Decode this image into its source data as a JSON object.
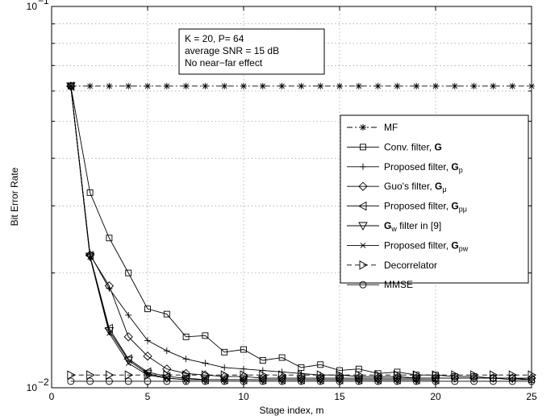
{
  "chart_data": {
    "type": "line",
    "xlabel": "Stage index, m",
    "ylabel": "Bit Error Rate",
    "xlim": [
      0,
      25
    ],
    "ylim": [
      0.01,
      0.1
    ],
    "yscale": "log",
    "xticks": [
      0,
      5,
      10,
      15,
      20,
      25
    ],
    "ytick_labels": [
      {
        "base": "10",
        "exp": "−2",
        "value": 0.01
      },
      {
        "base": "10",
        "exp": "−1",
        "value": 0.1
      }
    ],
    "grid": true,
    "legend_position": "right",
    "annotation": {
      "lines": [
        "K = 20, P= 64",
        "average SNR = 15 dB",
        "No near−far effect"
      ]
    },
    "series": [
      {
        "name": "MF",
        "name_sub": "",
        "style": "dashdot",
        "marker": "asterisk",
        "x": [
          1,
          2,
          3,
          4,
          5,
          6,
          7,
          8,
          9,
          10,
          11,
          12,
          13,
          14,
          15,
          16,
          17,
          18,
          19,
          20,
          21,
          22,
          23,
          24,
          25
        ],
        "y": [
          0.0618,
          0.0618,
          0.0618,
          0.0618,
          0.0618,
          0.0618,
          0.0618,
          0.0618,
          0.0618,
          0.0618,
          0.0618,
          0.0618,
          0.0618,
          0.0618,
          0.0618,
          0.0618,
          0.0618,
          0.0618,
          0.0618,
          0.0618,
          0.0618,
          0.0618,
          0.0618,
          0.0618,
          0.0618
        ]
      },
      {
        "name": "Conv. filter, ",
        "name_bold": "G",
        "name_sub": "",
        "style": "solid",
        "marker": "square",
        "x": [
          1,
          2,
          3,
          4,
          5,
          6,
          7,
          8,
          9,
          10,
          11,
          12,
          13,
          14,
          15,
          16,
          17,
          18,
          19,
          20,
          21,
          22,
          23,
          24,
          25
        ],
        "y": [
          0.0618,
          0.0325,
          0.0247,
          0.02,
          0.0161,
          0.0156,
          0.0136,
          0.0137,
          0.0124,
          0.0126,
          0.0118,
          0.012,
          0.0113,
          0.0115,
          0.0111,
          0.0112,
          0.0109,
          0.011,
          0.0108,
          0.0108,
          0.0107,
          0.0107,
          0.0106,
          0.0106,
          0.0105
        ]
      },
      {
        "name": "Proposed filter, ",
        "name_bold": "G",
        "name_sub": "p",
        "style": "solid",
        "marker": "plus",
        "x": [
          1,
          2,
          3,
          4,
          5,
          6,
          7,
          8,
          9,
          10,
          11,
          12,
          13,
          14,
          15,
          16,
          17,
          18,
          19,
          20,
          21,
          22,
          23,
          24,
          25
        ],
        "y": [
          0.0618,
          0.0224,
          0.0182,
          0.0155,
          0.0133,
          0.0125,
          0.0119,
          0.0116,
          0.0113,
          0.0112,
          0.0111,
          0.011,
          0.0109,
          0.0108,
          0.0108,
          0.0107,
          0.0107,
          0.0107,
          0.0106,
          0.0106,
          0.0106,
          0.0106,
          0.0106,
          0.0105,
          0.0105
        ]
      },
      {
        "name": "Guo's filter, ",
        "name_bold": "G",
        "name_sub": "μ",
        "style": "solid",
        "marker": "diamond",
        "x": [
          1,
          2,
          3,
          4,
          5,
          6,
          7,
          8,
          9,
          10,
          11,
          12,
          13,
          14,
          15,
          16,
          17,
          18,
          19,
          20,
          21,
          22,
          23,
          24,
          25
        ],
        "y": [
          0.0618,
          0.0223,
          0.0185,
          0.0136,
          0.0121,
          0.0112,
          0.0109,
          0.0108,
          0.0107,
          0.0107,
          0.0106,
          0.0106,
          0.0106,
          0.0106,
          0.0106,
          0.0106,
          0.0106,
          0.0106,
          0.0106,
          0.0106,
          0.0106,
          0.0106,
          0.0106,
          0.0106,
          0.0106
        ]
      },
      {
        "name": "Proposed filter, ",
        "name_bold": "G",
        "name_sub": "pμ",
        "style": "solid",
        "marker": "tri-left",
        "x": [
          1,
          2,
          3,
          4,
          5,
          6,
          7,
          8,
          9,
          10,
          11,
          12,
          13,
          14,
          15,
          16,
          17,
          18,
          19,
          20
        ],
        "y": [
          0.0618,
          0.0222,
          0.0143,
          0.0119,
          0.011,
          0.0107,
          0.0106,
          0.0105,
          0.0105,
          0.0105,
          0.0105,
          0.0105,
          0.0105,
          0.0105,
          0.0105,
          0.0105,
          0.0105,
          0.0105,
          0.0105,
          0.0105
        ]
      },
      {
        "name": " filter in [9]",
        "name_bold": "G",
        "name_sub": "w",
        "name_prefix_symbol": true,
        "style": "solid",
        "marker": "tri-down",
        "x": [
          1,
          2,
          3,
          4,
          5,
          6,
          7,
          8,
          9,
          10,
          11,
          12,
          13,
          14,
          15,
          16,
          17,
          18,
          19,
          20
        ],
        "y": [
          0.0618,
          0.0221,
          0.0141,
          0.0118,
          0.0109,
          0.0106,
          0.0105,
          0.0105,
          0.0105,
          0.0105,
          0.0105,
          0.0105,
          0.0105,
          0.0105,
          0.0105,
          0.0105,
          0.0105,
          0.0105,
          0.0105,
          0.0105
        ]
      },
      {
        "name": "Proposed filter, ",
        "name_bold": "G",
        "name_sub": "pw",
        "style": "solid",
        "marker": "x",
        "x": [
          1,
          2,
          3,
          4,
          5,
          6,
          7,
          8,
          9,
          10,
          11,
          12,
          13,
          14,
          15,
          16,
          17,
          18,
          19,
          20
        ],
        "y": [
          0.0618,
          0.022,
          0.0139,
          0.0116,
          0.0108,
          0.0106,
          0.0105,
          0.0105,
          0.0105,
          0.0105,
          0.0105,
          0.0105,
          0.0105,
          0.0105,
          0.0105,
          0.0105,
          0.0105,
          0.0105,
          0.0105,
          0.0105
        ]
      },
      {
        "name": "Decorrelator",
        "name_sub": "",
        "style": "dashed",
        "marker": "tri-right",
        "x": [
          1,
          2,
          3,
          4,
          5,
          6,
          7,
          8,
          9,
          10,
          11,
          12,
          13,
          14,
          15,
          16,
          17,
          18,
          19,
          20,
          21,
          22,
          23,
          24,
          25
        ],
        "y": [
          0.0108,
          0.0108,
          0.0108,
          0.0108,
          0.0108,
          0.0108,
          0.0108,
          0.0108,
          0.0108,
          0.0108,
          0.0108,
          0.0108,
          0.0108,
          0.0108,
          0.0108,
          0.0108,
          0.0108,
          0.0108,
          0.0108,
          0.0108,
          0.0108,
          0.0108,
          0.0108,
          0.0108,
          0.0108
        ]
      },
      {
        "name": "MMSE",
        "name_sub": "",
        "style": "solid",
        "marker": "circle",
        "x": [
          1,
          2,
          3,
          4,
          5,
          6,
          7,
          8,
          9,
          10,
          11,
          12,
          13,
          14,
          15,
          16,
          17,
          18,
          19,
          20,
          21,
          22,
          23,
          24,
          25
        ],
        "y": [
          0.0104,
          0.0104,
          0.0104,
          0.0104,
          0.0104,
          0.0104,
          0.0104,
          0.0104,
          0.0104,
          0.0104,
          0.0104,
          0.0104,
          0.0104,
          0.0104,
          0.0104,
          0.0104,
          0.0104,
          0.0104,
          0.0104,
          0.0104,
          0.0104,
          0.0104,
          0.0104,
          0.0104,
          0.0104
        ]
      }
    ]
  }
}
